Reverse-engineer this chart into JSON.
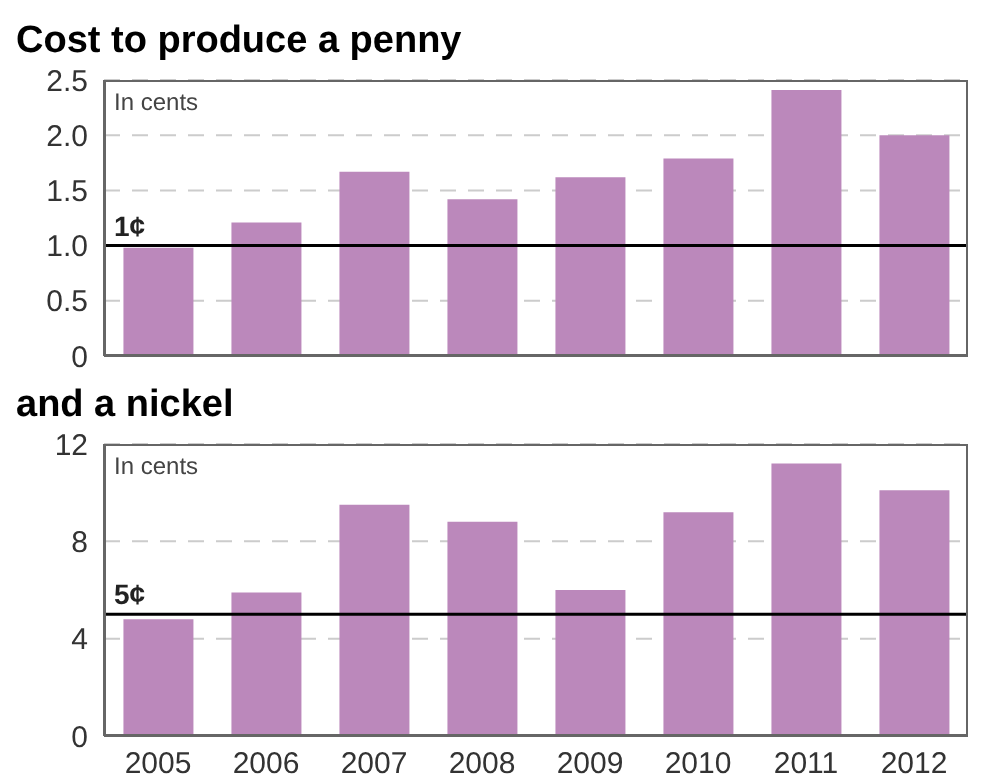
{
  "chart_data": [
    {
      "type": "bar",
      "title": "Cost to produce a penny",
      "categories": [
        "2005",
        "2006",
        "2007",
        "2008",
        "2009",
        "2010",
        "2011",
        "2012"
      ],
      "values": [
        0.98,
        1.21,
        1.67,
        1.42,
        1.62,
        1.79,
        2.41,
        2.0
      ],
      "color": "#bb88bb",
      "ylim": [
        0,
        2.5
      ],
      "yticks": [
        {
          "value": 0,
          "label": "0"
        },
        0.5,
        {
          "value": 1,
          "label": "1.0"
        },
        1.5,
        {
          "value": 2,
          "label": "2.0"
        },
        2.5
      ],
      "grid": "y",
      "tick_labels": "y",
      "annotations": [
        "In cents"
      ],
      "ref_lines": [
        {
          "axis": "y",
          "value": 1,
          "label": "1¢",
          "color": "#000000"
        }
      ]
    },
    {
      "type": "bar",
      "title": "and a nickel",
      "categories": [
        "2005",
        "2006",
        "2007",
        "2008",
        "2009",
        "2010",
        "2011",
        "2012"
      ],
      "values": [
        4.8,
        5.9,
        9.5,
        8.8,
        6.0,
        9.2,
        11.2,
        10.1
      ],
      "color": "#bb88bb",
      "ylim": [
        0,
        12
      ],
      "yticks": [
        0,
        4,
        8,
        12
      ],
      "grid": "y",
      "annotations": [
        "In cents"
      ],
      "ref_lines": [
        {
          "axis": "y",
          "value": 5,
          "label": "5¢",
          "color": "#000000"
        }
      ]
    }
  ]
}
